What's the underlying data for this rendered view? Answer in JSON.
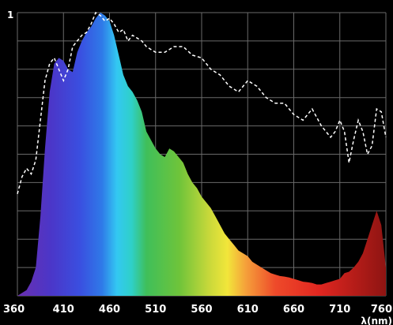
{
  "chart_data": {
    "type": "area",
    "title": "",
    "xlabel": "λ(nm)",
    "ylabel": "",
    "y_axis_top_label": "1",
    "xlim": [
      360,
      760
    ],
    "ylim": [
      0,
      1
    ],
    "x_ticks": [
      360,
      410,
      460,
      510,
      560,
      610,
      660,
      710,
      760
    ],
    "grid": true,
    "background": "#000000",
    "grid_color": "#6a6a6a",
    "series": [
      {
        "style": "filled-spectrum",
        "x": [
          360,
          370,
          375,
          380,
          385,
          390,
          395,
          400,
          405,
          410,
          415,
          420,
          425,
          430,
          435,
          440,
          445,
          450,
          455,
          460,
          465,
          470,
          475,
          480,
          485,
          490,
          495,
          500,
          505,
          510,
          515,
          520,
          525,
          530,
          535,
          540,
          545,
          550,
          555,
          560,
          565,
          570,
          575,
          580,
          585,
          590,
          595,
          600,
          605,
          610,
          615,
          620,
          625,
          630,
          635,
          640,
          645,
          650,
          655,
          660,
          665,
          670,
          675,
          680,
          685,
          690,
          695,
          700,
          705,
          710,
          715,
          720,
          725,
          730,
          735,
          740,
          745,
          750,
          755,
          760
        ],
        "y": [
          0,
          0.02,
          0.05,
          0.1,
          0.28,
          0.52,
          0.72,
          0.82,
          0.84,
          0.83,
          0.8,
          0.79,
          0.86,
          0.9,
          0.93,
          0.95,
          0.98,
          1.0,
          0.99,
          0.97,
          0.92,
          0.85,
          0.78,
          0.74,
          0.72,
          0.69,
          0.65,
          0.58,
          0.55,
          0.52,
          0.5,
          0.49,
          0.52,
          0.51,
          0.49,
          0.47,
          0.43,
          0.4,
          0.38,
          0.35,
          0.33,
          0.31,
          0.28,
          0.25,
          0.22,
          0.2,
          0.18,
          0.16,
          0.15,
          0.14,
          0.12,
          0.11,
          0.1,
          0.09,
          0.08,
          0.075,
          0.07,
          0.068,
          0.065,
          0.06,
          0.055,
          0.05,
          0.048,
          0.045,
          0.04,
          0.04,
          0.045,
          0.05,
          0.055,
          0.06,
          0.08,
          0.085,
          0.1,
          0.12,
          0.15,
          0.2,
          0.25,
          0.3,
          0.25,
          0.1
        ]
      },
      {
        "style": "dashed",
        "color": "#ffffff",
        "x": [
          360,
          365,
          370,
          375,
          380,
          385,
          390,
          395,
          400,
          405,
          410,
          415,
          420,
          425,
          430,
          435,
          440,
          445,
          450,
          455,
          460,
          465,
          470,
          475,
          480,
          485,
          490,
          495,
          500,
          505,
          510,
          520,
          530,
          540,
          550,
          560,
          570,
          580,
          590,
          600,
          610,
          620,
          630,
          640,
          650,
          660,
          670,
          680,
          690,
          700,
          705,
          710,
          715,
          720,
          725,
          730,
          735,
          740,
          745,
          750,
          755,
          760
        ],
        "y": [
          0.36,
          0.42,
          0.45,
          0.43,
          0.48,
          0.62,
          0.76,
          0.82,
          0.84,
          0.8,
          0.76,
          0.8,
          0.88,
          0.9,
          0.92,
          0.93,
          0.96,
          1.0,
          0.99,
          0.97,
          0.98,
          0.96,
          0.93,
          0.94,
          0.9,
          0.92,
          0.91,
          0.9,
          0.88,
          0.87,
          0.86,
          0.86,
          0.88,
          0.88,
          0.85,
          0.84,
          0.8,
          0.78,
          0.74,
          0.72,
          0.76,
          0.74,
          0.7,
          0.68,
          0.68,
          0.64,
          0.62,
          0.66,
          0.6,
          0.56,
          0.58,
          0.62,
          0.58,
          0.47,
          0.55,
          0.62,
          0.58,
          0.5,
          0.53,
          0.66,
          0.65,
          0.56
        ]
      }
    ]
  }
}
